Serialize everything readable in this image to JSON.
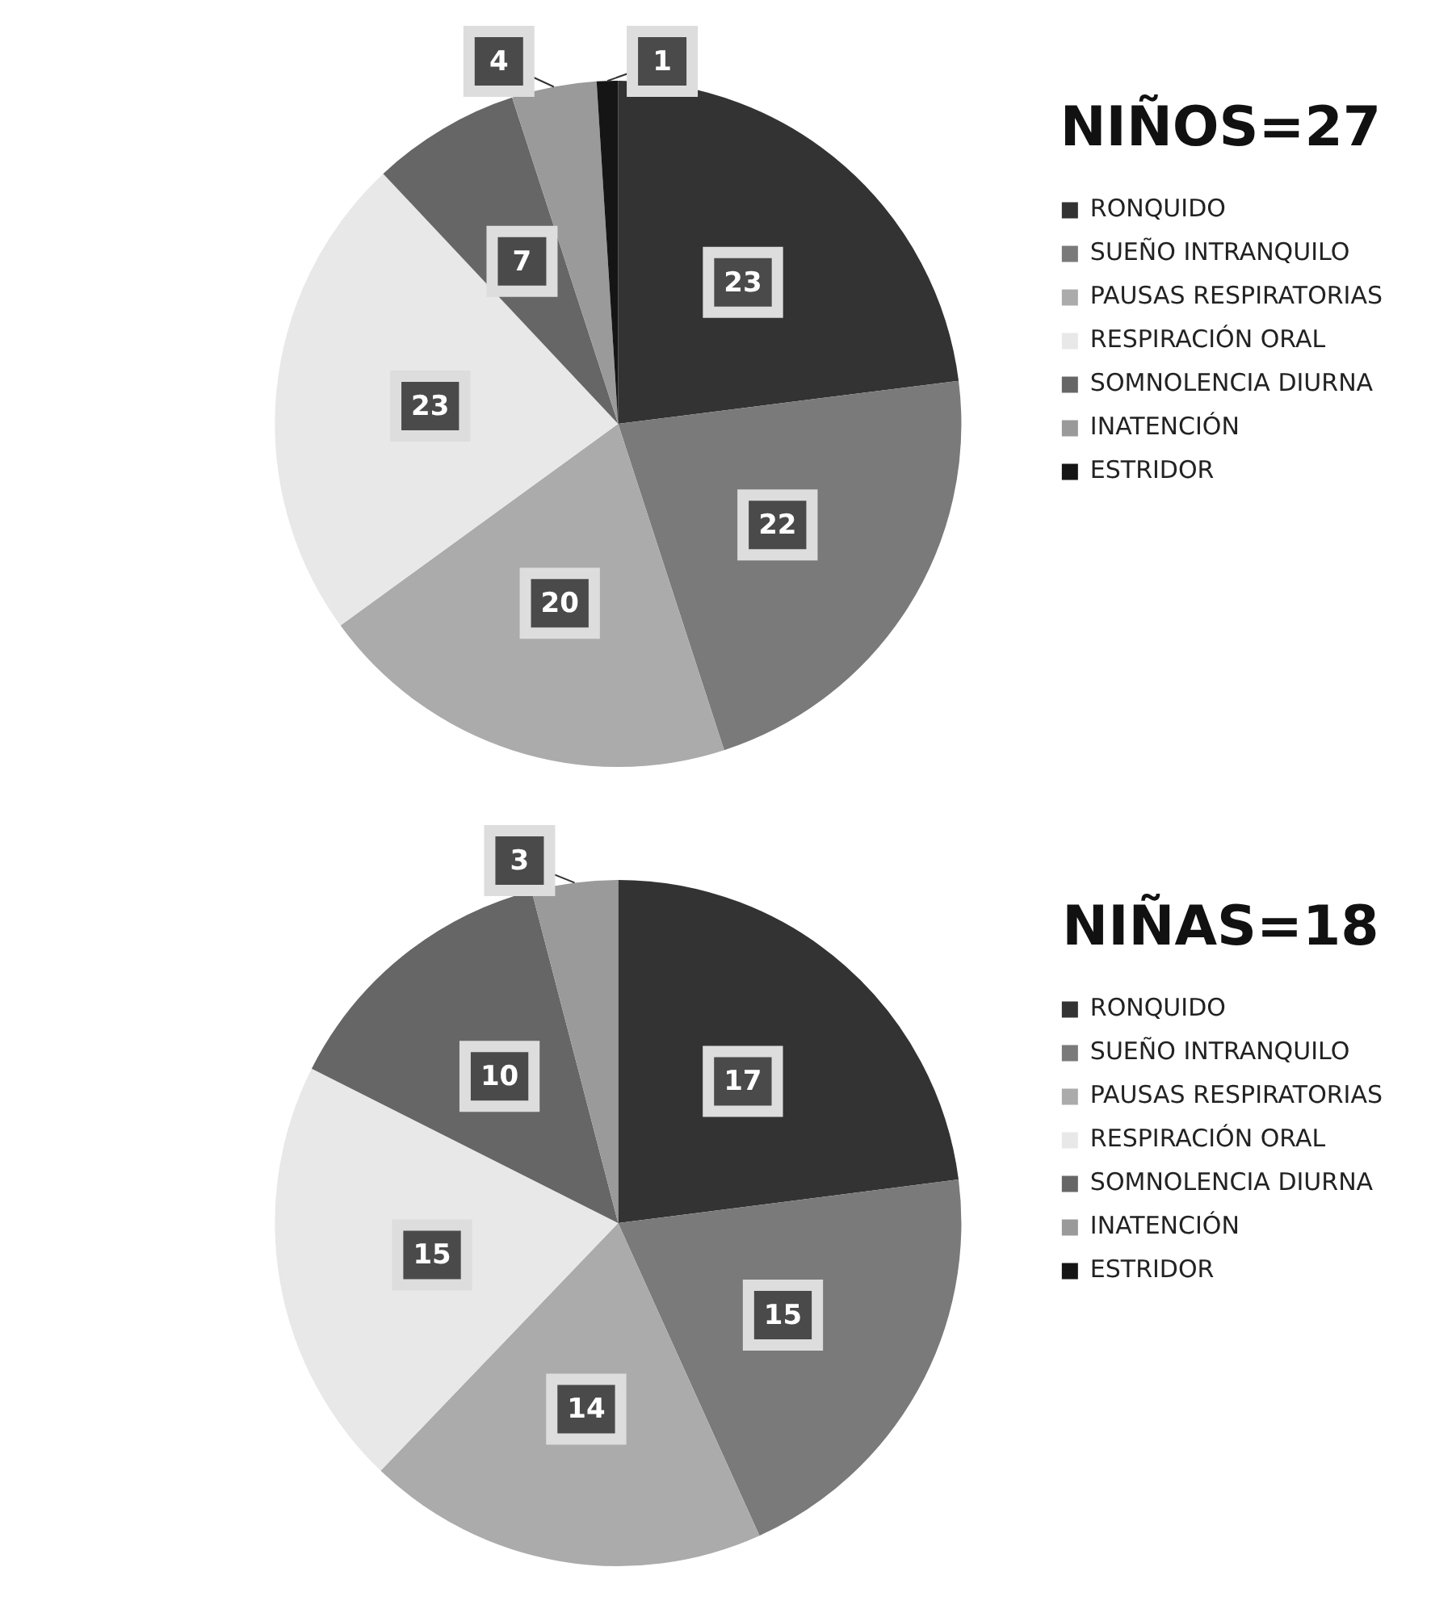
{
  "chart_data": [
    {
      "type": "pie",
      "title": "NIÑOS=27",
      "categories": [
        "RONQUIDO",
        "SUEÑO INTRANQUILO",
        "PAUSAS RESPIRATORIAS",
        "RESPIRACIÓN ORAL",
        "SOMNOLENCIA DIURNA",
        "INATENCIÓN",
        "ESTRIDOR"
      ],
      "values": [
        23,
        22,
        20,
        23,
        7,
        4,
        1
      ],
      "colors": [
        "#333333",
        "#7a7a7a",
        "#ababab",
        "#e8e8e8",
        "#666666",
        "#9a9a9a",
        "#151515"
      ],
      "data_labels": true,
      "legend": "right"
    },
    {
      "type": "pie",
      "title": "NIÑAS=18",
      "categories": [
        "RONQUIDO",
        "SUEÑO INTRANQUILO",
        "PAUSAS RESPIRATORIAS",
        "RESPIRACIÓN ORAL",
        "SOMNOLENCIA DIURNA",
        "INATENCIÓN",
        "ESTRIDOR"
      ],
      "values": [
        17,
        15,
        14,
        15,
        10,
        3,
        0
      ],
      "colors": [
        "#333333",
        "#7a7a7a",
        "#ababab",
        "#e8e8e8",
        "#666666",
        "#9a9a9a",
        "#151515"
      ],
      "value_labels": [
        "17",
        "15",
        "14",
        "15",
        "10",
        "3",
        null
      ],
      "legend": "right"
    }
  ]
}
